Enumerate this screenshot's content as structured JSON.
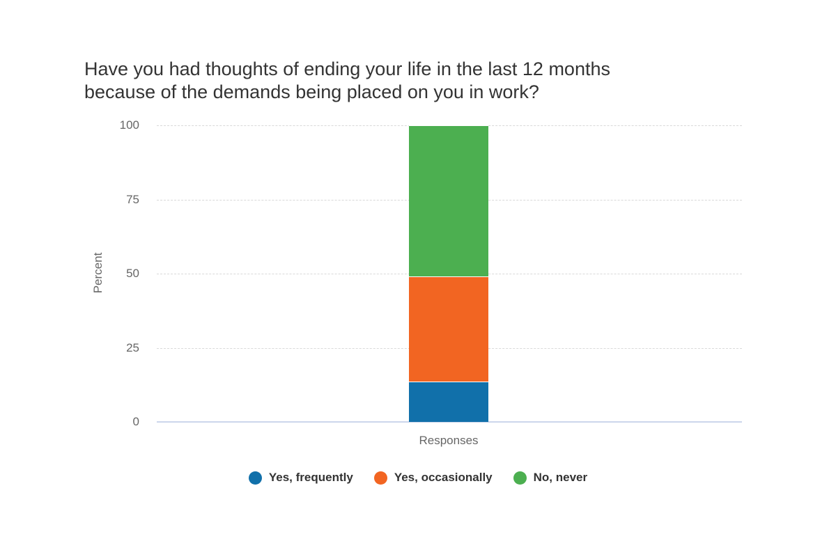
{
  "chart_data": {
    "type": "bar",
    "stacked": true,
    "title": "Have you had thoughts of ending your life in the last 12 months because of the demands being placed on you in work?",
    "title_lines": [
      "Have you had thoughts of ending your life in the last 12 months",
      "because of the demands being placed on you in work?"
    ],
    "xlabel": "",
    "ylabel": "Percent",
    "categories": [
      "Responses"
    ],
    "ylim": [
      0,
      100
    ],
    "yticks": [
      0,
      25,
      50,
      75,
      100
    ],
    "grid": true,
    "legend_position": "bottom",
    "series": [
      {
        "name": "Yes, frequently",
        "color": "#1170aa",
        "values": [
          13.6
        ]
      },
      {
        "name": "Yes, occasionally",
        "color": "#f26522",
        "values": [
          35.4
        ]
      },
      {
        "name": "No, never",
        "color": "#4caf50",
        "values": [
          51.0
        ]
      }
    ]
  }
}
